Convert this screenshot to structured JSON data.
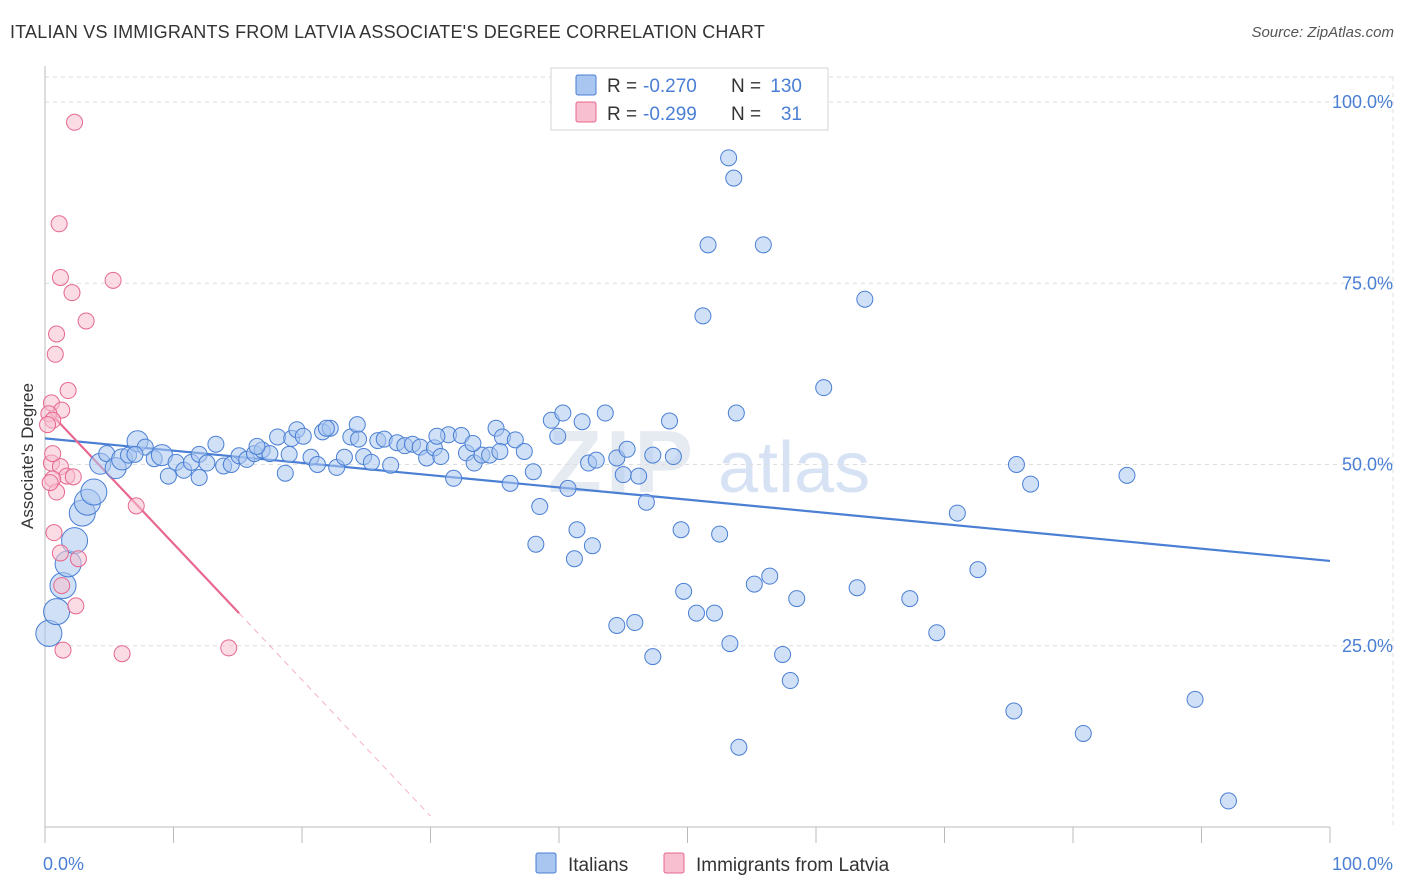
{
  "title": "ITALIAN VS IMMIGRANTS FROM LATVIA ASSOCIATE'S DEGREE CORRELATION CHART",
  "source": "Source: ZipAtlas.com",
  "watermark": {
    "left": "ZIP",
    "right": "atlas"
  },
  "colors": {
    "blue": "#4a7fd4",
    "blue_fill": "#a9c6f0",
    "pink": "#e7678e",
    "pink_fill": "#f7bfd0",
    "grid": "#dddddd",
    "tick_label": "#4a7fd4"
  },
  "legend_top": [
    {
      "r_label": "R = ",
      "r_value": "-0.270",
      "n_label": "N = ",
      "n_value": "130",
      "color": "blue"
    },
    {
      "r_label": "R = ",
      "r_value": "-0.299",
      "n_label": "N = ",
      "n_value": "31",
      "color": "pink"
    }
  ],
  "legend_bottom": [
    {
      "label": "Italians",
      "color": "blue"
    },
    {
      "label": "Immigrants from Latvia",
      "color": "pink"
    }
  ],
  "chart_data": {
    "type": "scatter",
    "title": "ITALIAN VS IMMIGRANTS FROM LATVIA ASSOCIATE'S DEGREE CORRELATION CHART",
    "xlabel": "",
    "ylabel": "Associate's Degree",
    "xlim": [
      0,
      100
    ],
    "ylim": [
      0,
      104
    ],
    "x_tick_labels": [
      {
        "value": 0,
        "label": "0.0%"
      },
      {
        "value": 100,
        "label": "100.0%"
      }
    ],
    "y_tick_labels": [
      {
        "value": 25,
        "label": "25.0%"
      },
      {
        "value": 50,
        "label": "50.0%"
      },
      {
        "value": 75,
        "label": "75.0%"
      },
      {
        "value": 100,
        "label": "100.0%"
      }
    ],
    "grid": true,
    "legend_position": "top-center",
    "series": [
      {
        "name": "Italians",
        "color": "blue",
        "points": [
          [
            0.3,
            26.7,
            "l"
          ],
          [
            0.9,
            29.7,
            "l"
          ],
          [
            1.4,
            33.3,
            "l"
          ],
          [
            1.8,
            36.3,
            "l"
          ],
          [
            2.3,
            39.5,
            "l"
          ],
          [
            2.9,
            43.3,
            "l"
          ],
          [
            3.3,
            44.8,
            "l"
          ],
          [
            3.8,
            46.2,
            "l"
          ],
          [
            4.3,
            50.1,
            "m"
          ],
          [
            4.8,
            51.5
          ],
          [
            5.5,
            49.5,
            "m"
          ],
          [
            6.0,
            50.7,
            "m"
          ],
          [
            6.5,
            51.3
          ],
          [
            7.2,
            53.2,
            "m"
          ],
          [
            7.8,
            52.4
          ],
          [
            8.5,
            50.8
          ],
          [
            9.1,
            51.3,
            "m"
          ],
          [
            9.6,
            48.4
          ],
          [
            10.2,
            50.3
          ],
          [
            10.8,
            49.2
          ],
          [
            11.4,
            50.3
          ],
          [
            12.0,
            51.4
          ],
          [
            12.6,
            50.2
          ],
          [
            13.3,
            52.8
          ],
          [
            13.9,
            49.8
          ],
          [
            14.5,
            50.0
          ],
          [
            15.1,
            51.2
          ],
          [
            15.7,
            50.7
          ],
          [
            16.3,
            51.5
          ],
          [
            16.9,
            52.0
          ],
          [
            17.5,
            51.5
          ],
          [
            18.1,
            53.8
          ],
          [
            18.7,
            48.8
          ],
          [
            19.2,
            53.6
          ],
          [
            19.6,
            54.8
          ],
          [
            20.1,
            53.9
          ],
          [
            20.7,
            51.0
          ],
          [
            21.2,
            50.0
          ],
          [
            21.6,
            54.5
          ],
          [
            22.2,
            55.0
          ],
          [
            22.7,
            49.6
          ],
          [
            23.3,
            51.0
          ],
          [
            23.8,
            53.8
          ],
          [
            24.3,
            55.5
          ],
          [
            24.8,
            51.1
          ],
          [
            25.4,
            50.3
          ],
          [
            25.9,
            53.3
          ],
          [
            26.4,
            53.5
          ],
          [
            26.9,
            49.9
          ],
          [
            27.4,
            53.0
          ],
          [
            28.0,
            52.6
          ],
          [
            28.6,
            52.8
          ],
          [
            29.2,
            52.4
          ],
          [
            29.7,
            50.9
          ],
          [
            30.3,
            52.3
          ],
          [
            30.8,
            51.1
          ],
          [
            31.4,
            54.1
          ],
          [
            31.8,
            48.1
          ],
          [
            32.4,
            54.0
          ],
          [
            32.8,
            51.6
          ],
          [
            33.4,
            50.2
          ],
          [
            34.0,
            51.3
          ],
          [
            34.6,
            51.3
          ],
          [
            35.1,
            55.0
          ],
          [
            35.6,
            53.8
          ],
          [
            36.2,
            47.4
          ],
          [
            36.6,
            53.4
          ],
          [
            37.3,
            51.8
          ],
          [
            38.0,
            49.0
          ],
          [
            38.5,
            44.2
          ],
          [
            38.2,
            39.0
          ],
          [
            39.4,
            56.1
          ],
          [
            39.9,
            53.9
          ],
          [
            40.3,
            57.1
          ],
          [
            40.7,
            46.7
          ],
          [
            41.8,
            55.9
          ],
          [
            42.3,
            50.2
          ],
          [
            42.9,
            50.6
          ],
          [
            41.4,
            41.0
          ],
          [
            41.2,
            37.0
          ],
          [
            42.6,
            38.8
          ],
          [
            43.6,
            57.1
          ],
          [
            44.5,
            50.9
          ],
          [
            45.0,
            48.6
          ],
          [
            46.2,
            48.4
          ],
          [
            44.5,
            27.8
          ],
          [
            45.9,
            28.2
          ],
          [
            46.8,
            44.8
          ],
          [
            47.3,
            51.3
          ],
          [
            48.6,
            56.0
          ],
          [
            48.9,
            51.1
          ],
          [
            47.3,
            23.5
          ],
          [
            49.5,
            41.0
          ],
          [
            49.7,
            32.5
          ],
          [
            50.7,
            29.5
          ],
          [
            51.2,
            70.5
          ],
          [
            51.6,
            80.3
          ],
          [
            52.1,
            29.5
          ],
          [
            52.5,
            40.4
          ],
          [
            53.3,
            25.3
          ],
          [
            53.8,
            57.1
          ],
          [
            54.0,
            11.0
          ],
          [
            53.2,
            92.3
          ],
          [
            53.6,
            89.5
          ],
          [
            55.2,
            33.5
          ],
          [
            55.9,
            80.3
          ],
          [
            56.4,
            34.6
          ],
          [
            57.4,
            23.8
          ],
          [
            58.0,
            20.2
          ],
          [
            58.5,
            31.5
          ],
          [
            60.6,
            60.6
          ],
          [
            63.2,
            33.0
          ],
          [
            63.8,
            72.8
          ],
          [
            67.3,
            31.5
          ],
          [
            69.4,
            26.8
          ],
          [
            71.0,
            43.3
          ],
          [
            72.6,
            35.5
          ],
          [
            75.4,
            16.0
          ],
          [
            75.6,
            50.0
          ],
          [
            76.7,
            47.3
          ],
          [
            80.8,
            12.9
          ],
          [
            84.2,
            48.5
          ],
          [
            89.5,
            17.6
          ],
          [
            92.1,
            3.6
          ],
          [
            19.0,
            51.4
          ],
          [
            35.4,
            51.8
          ],
          [
            30.5,
            53.9
          ],
          [
            24.4,
            53.5
          ],
          [
            12.0,
            48.2
          ],
          [
            33.3,
            52.9
          ],
          [
            45.3,
            52.1
          ],
          [
            7.0,
            51.4
          ],
          [
            16.5,
            52.5
          ],
          [
            21.9,
            55.0
          ]
        ]
      },
      {
        "name": "Immigrants from Latvia",
        "color": "pink",
        "points": [
          [
            2.3,
            97.2
          ],
          [
            1.1,
            83.2
          ],
          [
            1.2,
            75.8
          ],
          [
            5.3,
            75.4
          ],
          [
            2.1,
            73.7
          ],
          [
            3.2,
            69.8
          ],
          [
            0.9,
            68.0
          ],
          [
            0.8,
            65.2
          ],
          [
            1.8,
            60.2
          ],
          [
            0.5,
            58.5
          ],
          [
            1.3,
            57.5
          ],
          [
            0.3,
            57.0
          ],
          [
            0.6,
            56.1
          ],
          [
            0.2,
            55.5
          ],
          [
            0.5,
            50.2
          ],
          [
            1.2,
            49.7
          ],
          [
            1.7,
            48.4
          ],
          [
            2.2,
            48.3
          ],
          [
            0.6,
            48.0
          ],
          [
            0.9,
            46.2
          ],
          [
            7.1,
            44.3
          ],
          [
            0.7,
            40.6
          ],
          [
            1.2,
            37.8
          ],
          [
            2.6,
            37.0
          ],
          [
            1.3,
            33.3
          ],
          [
            2.4,
            30.5
          ],
          [
            1.4,
            24.4
          ],
          [
            6.0,
            23.9
          ],
          [
            14.3,
            24.7
          ],
          [
            0.4,
            47.5
          ],
          [
            0.6,
            51.5
          ]
        ]
      }
    ],
    "trend_lines": [
      {
        "series": "Italians",
        "x": [
          0,
          100
        ],
        "y": [
          53.6,
          36.7
        ]
      },
      {
        "series": "Immigrants from Latvia",
        "x": [
          0.3,
          15.1
        ],
        "y": [
          57.3,
          29.5
        ]
      },
      {
        "series": "Immigrants from Latvia",
        "style": "dashed-extension",
        "x": [
          15.1,
          30.0
        ],
        "y": [
          29.5,
          1.5
        ]
      }
    ]
  }
}
